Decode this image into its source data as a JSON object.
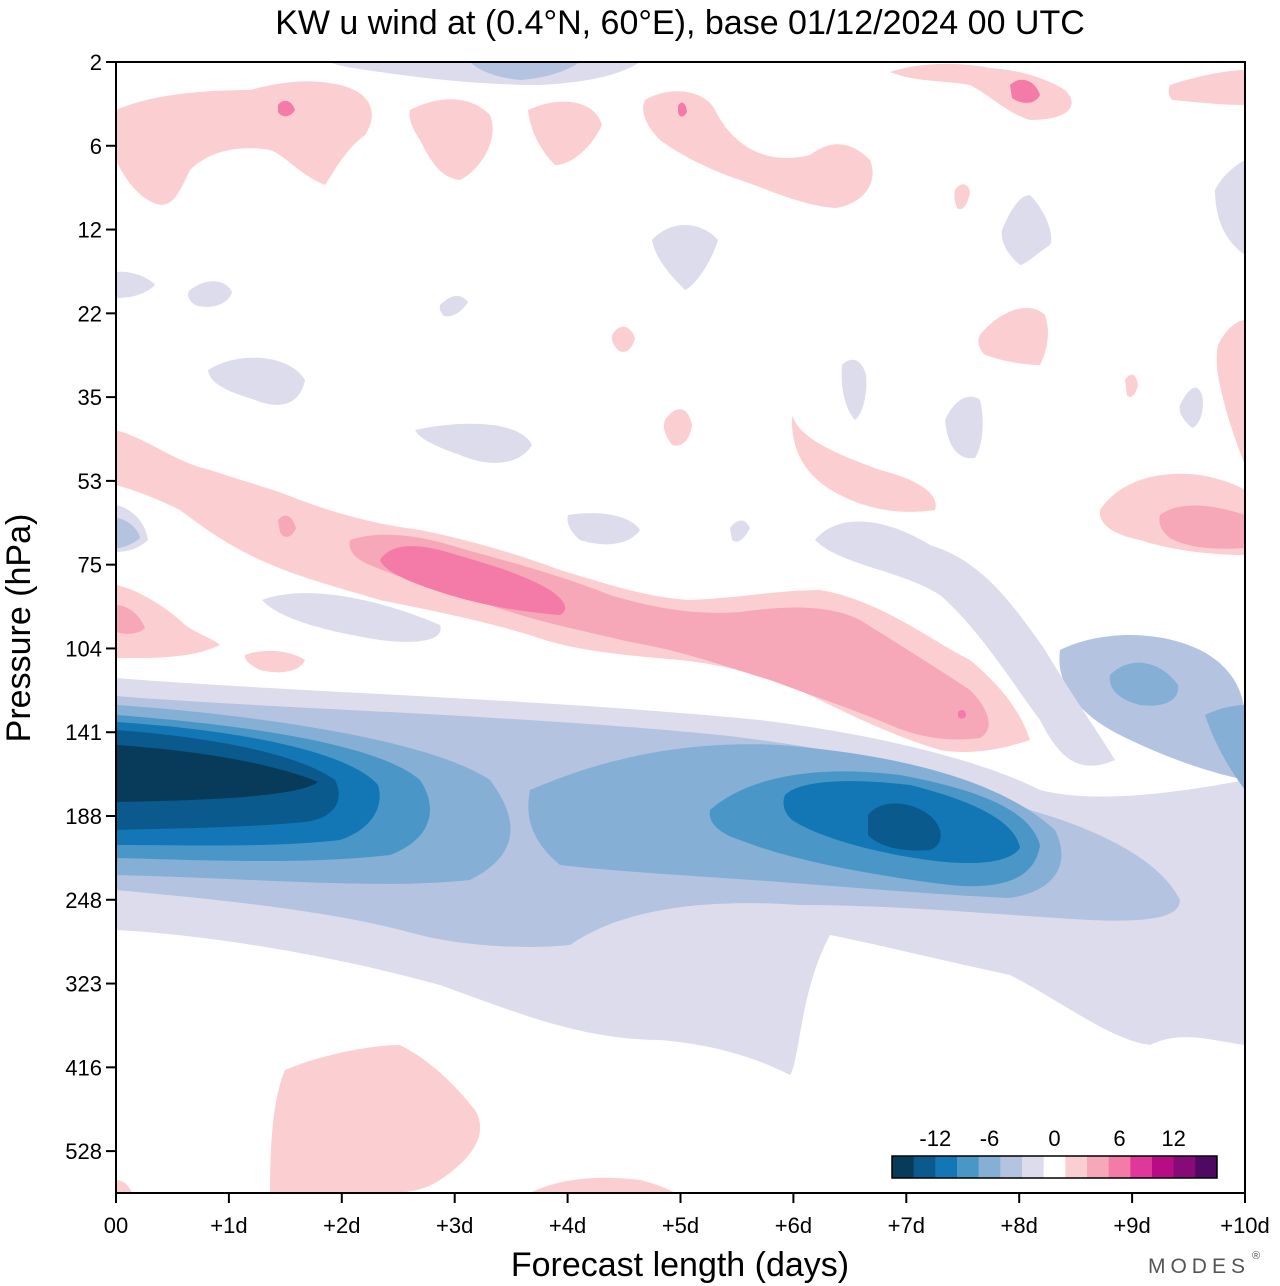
{
  "title": "KW u wind at (0.4°N, 60°E),  base 01/12/2024  00 UTC",
  "brand": "MODES",
  "brand_mark": "®",
  "chart_data": {
    "type": "heatmap",
    "title": "KW u wind at (0.4°N, 60°E),  base 01/12/2024  00 UTC",
    "xlabel": "Forecast length (days)",
    "ylabel": "Pressure (hPa)",
    "x_ticks": [
      "00",
      "+1d",
      "+2d",
      "+3d",
      "+4d",
      "+5d",
      "+6d",
      "+7d",
      "+8d",
      "+9d",
      "+10d"
    ],
    "y_ticks": [
      "2",
      "6",
      "12",
      "22",
      "35",
      "53",
      "75",
      "104",
      "141",
      "188",
      "248",
      "323",
      "416",
      "528"
    ],
    "xlim": [
      0,
      10
    ],
    "y_scale": "log-pressure",
    "grid": false,
    "legend": {
      "placement": "bottom-right",
      "labels": [
        "-12",
        "-6",
        "0",
        "6",
        "12"
      ],
      "colors": [
        "#083a5a",
        "#0b5a8e",
        "#1277b4",
        "#4a97c7",
        "#86afd5",
        "#b4c3e0",
        "#dcdcec",
        "#ffffff",
        "#fbcfd1",
        "#f6a8b8",
        "#f47aa8",
        "#e0389a",
        "#b80c87",
        "#860b78",
        "#4f0863"
      ]
    },
    "features": [
      {
        "name": "negative u core (tropopause layer)",
        "x_days": [
          0,
          2.5
        ],
        "pressure_hPa": [
          120,
          200
        ],
        "value_min": -16
      },
      {
        "name": "negative u secondary core",
        "x_days": [
          6,
          8
        ],
        "pressure_hPa": [
          150,
          220
        ],
        "value_min": -12
      },
      {
        "name": "positive u band",
        "x_days": [
          2,
          8
        ],
        "pressure_hPa": [
          60,
          140
        ],
        "value_max": 8
      }
    ]
  }
}
